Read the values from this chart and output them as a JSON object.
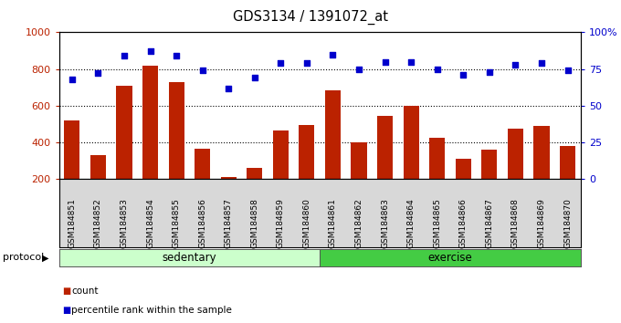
{
  "title": "GDS3134 / 1391072_at",
  "samples": [
    "GSM184851",
    "GSM184852",
    "GSM184853",
    "GSM184854",
    "GSM184855",
    "GSM184856",
    "GSM184857",
    "GSM184858",
    "GSM184859",
    "GSM184860",
    "GSM184861",
    "GSM184862",
    "GSM184863",
    "GSM184864",
    "GSM184865",
    "GSM184866",
    "GSM184867",
    "GSM184868",
    "GSM184869",
    "GSM184870"
  ],
  "counts": [
    520,
    330,
    710,
    820,
    730,
    365,
    210,
    260,
    465,
    495,
    685,
    400,
    545,
    600,
    425,
    310,
    360,
    475,
    490,
    380
  ],
  "percentiles": [
    68,
    72,
    84,
    87,
    84,
    74,
    62,
    69,
    79,
    79,
    85,
    75,
    80,
    80,
    75,
    71,
    73,
    78,
    79,
    74
  ],
  "bar_color": "#bb2200",
  "dot_color": "#0000cc",
  "sedentary_light": "#ccffcc",
  "exercise_green": "#44cc44",
  "ylim_left": [
    200,
    1000
  ],
  "yticks_left": [
    200,
    400,
    600,
    800,
    1000
  ],
  "ytick_labels_left": [
    "200",
    "400",
    "600",
    "800",
    "1000"
  ],
  "yticks_right_labels": [
    "0",
    "25",
    "50",
    "75",
    "100%"
  ],
  "grid_vals": [
    400,
    600,
    800
  ],
  "n_sedentary": 10,
  "n_exercise": 10,
  "legend_items": [
    "count",
    "percentile rank within the sample"
  ],
  "protocol_label": "protocol"
}
